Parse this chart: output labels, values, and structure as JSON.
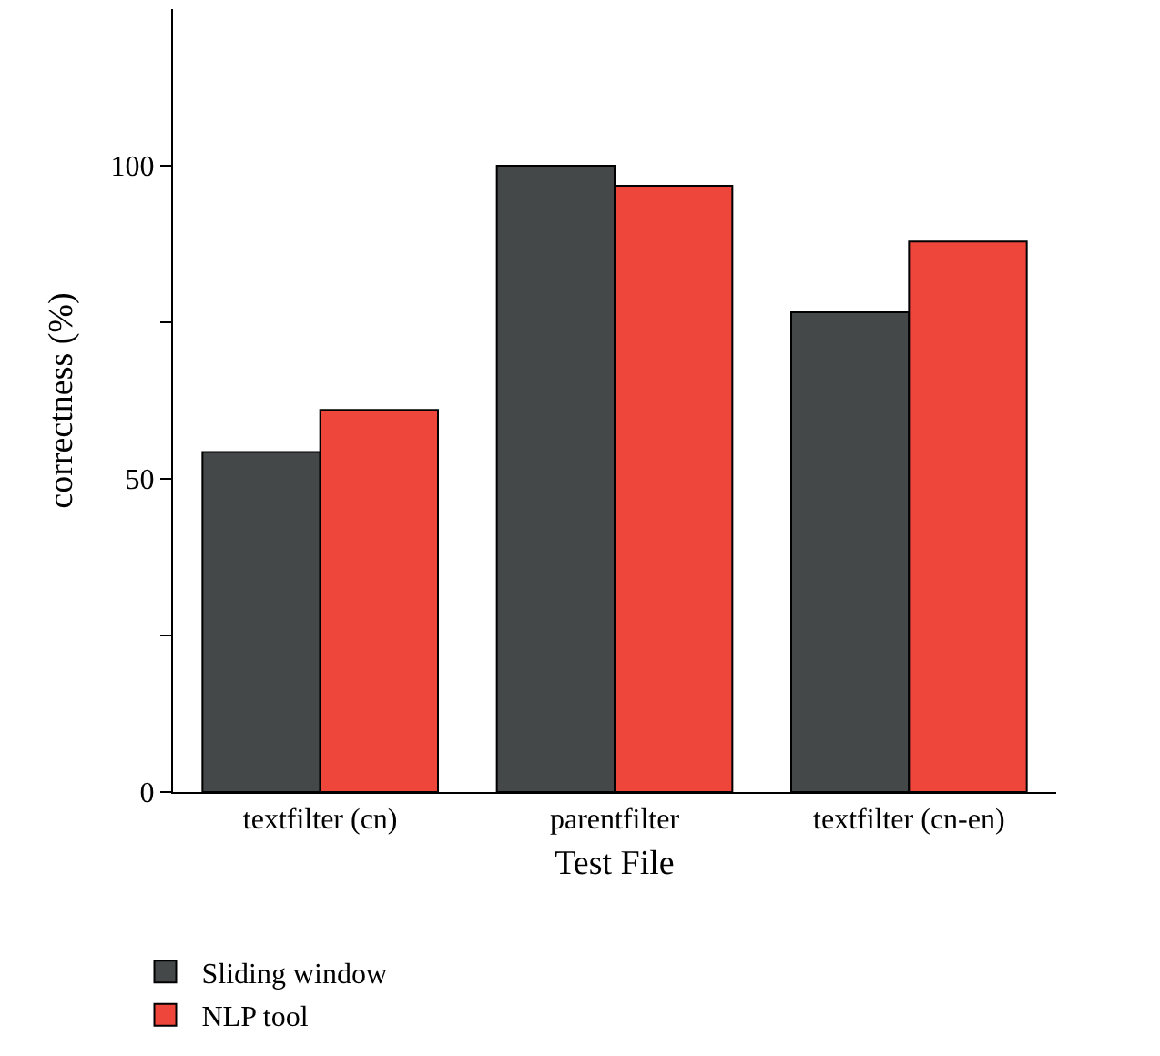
{
  "chart_data": {
    "type": "bar",
    "xlabel": "Test File",
    "ylabel": "correctness (%)",
    "categories": [
      "textfilter (cn)",
      "parentfilter",
      "textfilter (cn-en)"
    ],
    "series": [
      {
        "name": "Sliding window",
        "color": "#454848",
        "values": [
          54.3,
          100,
          76.6
        ]
      },
      {
        "name": "NLP tool",
        "color": "#ef463c",
        "values": [
          61.0,
          96.8,
          87.9
        ]
      }
    ],
    "ylim": [
      0,
      125
    ],
    "yticks": [
      0,
      {
        "value": 25,
        "label": null
      },
      50,
      {
        "value": 75,
        "label": null
      },
      100
    ],
    "legend": "bottom left"
  }
}
